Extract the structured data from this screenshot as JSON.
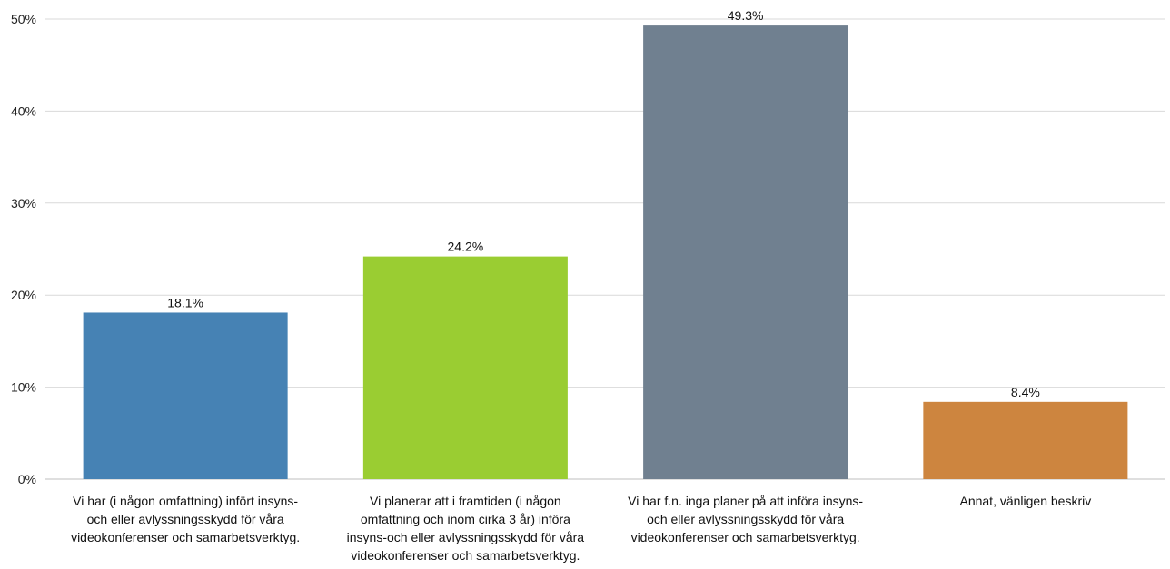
{
  "chart_data": {
    "type": "bar",
    "categories": [
      [
        "Vi har (i någon omfattning) infört insyns-",
        "och eller avlyssningsskydd för våra",
        "videokonferenser och samarbetsverktyg."
      ],
      [
        "Vi planerar att i framtiden (i någon",
        "omfattning och inom cirka 3 år) införa",
        "insyns-och eller avlyssningsskydd för våra",
        "videokonferenser och samarbetsverktyg."
      ],
      [
        "Vi har f.n. inga planer på att införa insyns-",
        "och eller avlyssningsskydd för våra",
        "videokonferenser och samarbetsverktyg."
      ],
      [
        "Annat, vänligen beskriv"
      ]
    ],
    "values": [
      18.1,
      24.2,
      49.3,
      8.4
    ],
    "value_labels": [
      "18.1%",
      "24.2%",
      "49.3%",
      "8.4%"
    ],
    "colors": [
      "#4682b4",
      "#9acd32",
      "#708090",
      "#cd853f"
    ],
    "ylim": [
      0,
      50
    ],
    "yticks": [
      0,
      10,
      20,
      30,
      40,
      50
    ],
    "ytick_labels": [
      "0%",
      "10%",
      "20%",
      "30%",
      "40%",
      "50%"
    ],
    "grid": true,
    "grid_color": "#d9d9d9"
  }
}
